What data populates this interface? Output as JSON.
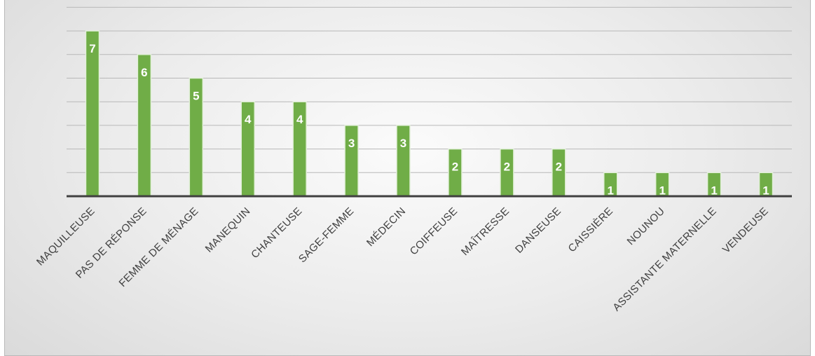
{
  "chart_data": {
    "type": "bar",
    "title": "",
    "xlabel": "",
    "ylabel": "",
    "categories": [
      "MAQUILLEUSE",
      "PAS DE RÉPONSE",
      "FEMME DE MÉNAGE",
      "MANEQUIN",
      "CHANTEUSE",
      "SAGE-FEMME",
      "MÉDECIN",
      "COIFFEUSE",
      "MAÎTRESSE",
      "DANSEUSE",
      "CAISSIÈRE",
      "NOUNOU",
      "ASSISTANTE MATERNELLE",
      "VENDEUSE"
    ],
    "values": [
      7,
      6,
      5,
      4,
      4,
      3,
      3,
      2,
      2,
      2,
      1,
      1,
      1,
      1
    ],
    "ylim": [
      0,
      8
    ],
    "grid": true,
    "legend": "none",
    "bar_color": "#70ad47",
    "label_color": "#ffffff"
  }
}
